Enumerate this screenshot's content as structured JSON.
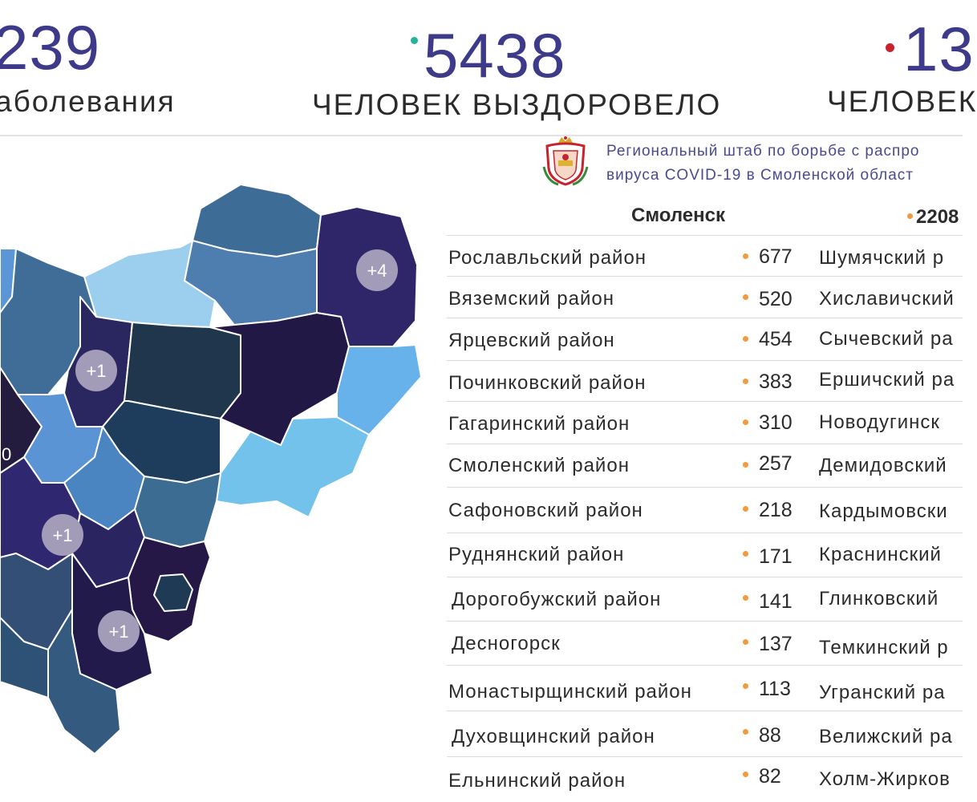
{
  "header": {
    "stat_left": {
      "number": "239",
      "label": "аболевания"
    },
    "stat_mid": {
      "number": "5438",
      "label": "ЧЕЛОВЕК ВЫЗДОРОВЕЛО",
      "dot_color": "#22b39a"
    },
    "stat_right": {
      "number": "13",
      "label": "ЧЕЛОВЕК",
      "dot_color": "#c8232c"
    }
  },
  "headquarters": {
    "line1": "Региональный штаб по борьбе с распро",
    "line2": "вируса  COVID-19 в Смоленской област"
  },
  "city": {
    "name": "Смоленск",
    "value": "2208"
  },
  "accent_color": "#f29a3c",
  "districts": [
    {
      "name": "Рославльский район",
      "value": "677",
      "right": "Шумячский р"
    },
    {
      "name": "Вяземский район",
      "value": "520",
      "right": "Хиславичский"
    },
    {
      "name": "Ярцевский район",
      "value": "454",
      "right": "Сычевский ра"
    },
    {
      "name": "Починковский район",
      "value": "383",
      "right": "Ершичский ра"
    },
    {
      "name": "Гагаринский район",
      "value": "310",
      "right": "Новодугинск"
    },
    {
      "name": "Смоленский район",
      "value": "257",
      "right": "Демидовский"
    },
    {
      "name": "Сафоновский район",
      "value": "218",
      "right": "Кардымовски"
    },
    {
      "name": "Руднянский район",
      "value": "171",
      "right": "Краснинский"
    },
    {
      "name": "Дорогобужский район",
      "value": "141",
      "right": "Глинковский"
    },
    {
      "name": "Десногорск",
      "value": "137",
      "right": "Темкинский р"
    },
    {
      "name": "Монастырщинский район",
      "value": "113",
      "right": "Угранский ра"
    },
    {
      "name": "Духовщинский район",
      "value": "88",
      "right": "Велижский ра"
    },
    {
      "name": "Ельнинский район",
      "value": "82",
      "right": "Холм-Жирков"
    }
  ],
  "map_badges": [
    "+4",
    "+1",
    "+1",
    "+1",
    "0"
  ]
}
